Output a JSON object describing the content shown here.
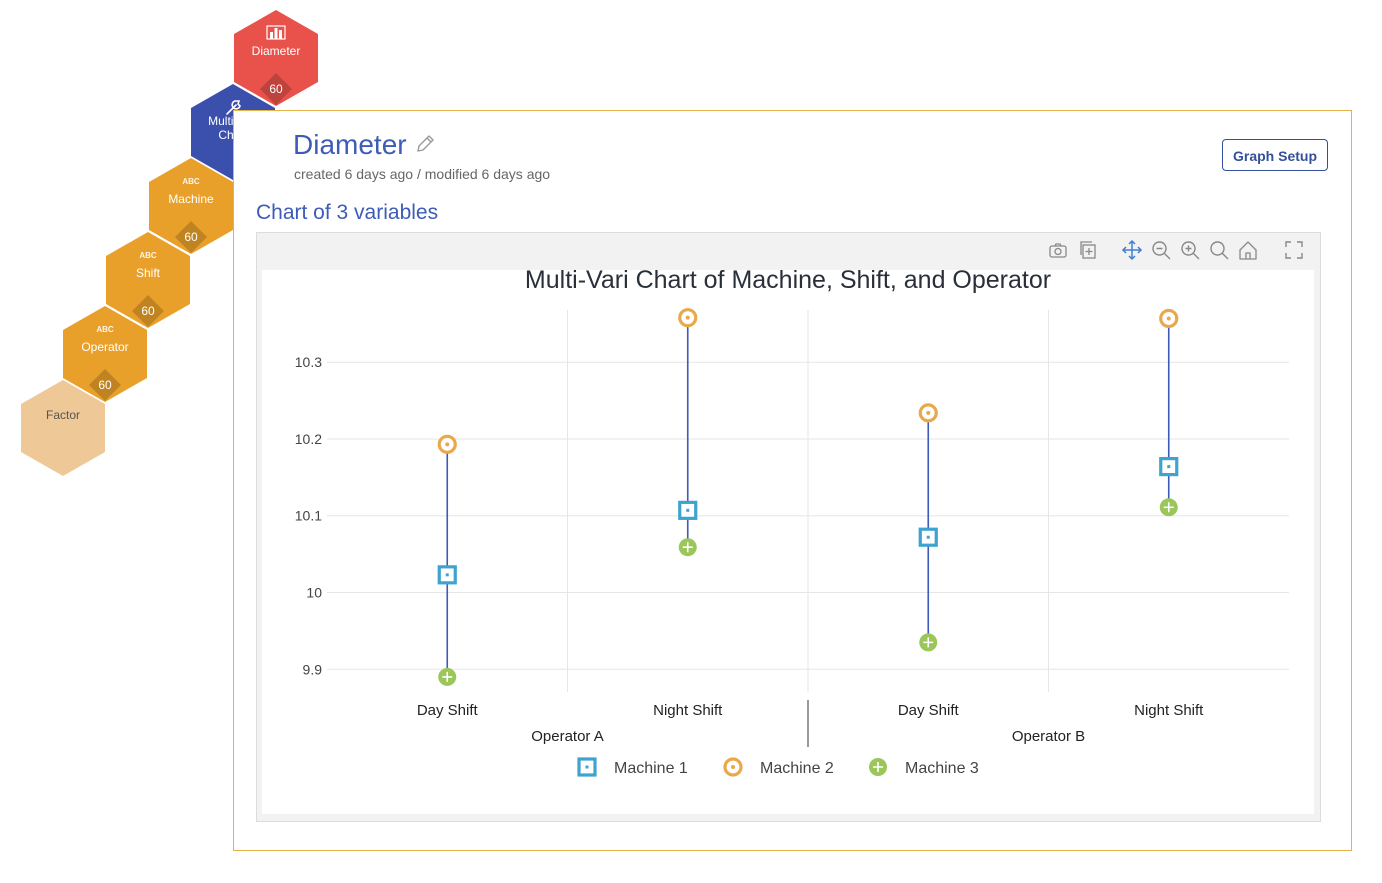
{
  "workflow": {
    "diameter": {
      "label": "Diameter",
      "count": "60"
    },
    "mvc": {
      "line1": "Multi-Vari",
      "line2": "Chart"
    },
    "machine": {
      "tag": "ABC",
      "label": "Machine",
      "count": "60"
    },
    "shift": {
      "tag": "ABC",
      "label": "Shift",
      "count": "60"
    },
    "operator": {
      "tag": "ABC",
      "label": "Operator",
      "count": "60"
    },
    "factor": {
      "label": "Factor"
    }
  },
  "panel": {
    "title": "Diameter",
    "meta": "created 6 days ago / modified 6 days ago",
    "graph_setup_label": "Graph Setup",
    "chart_heading": "Chart of 3 variables"
  },
  "colors": {
    "machine1": "#3fa3cf",
    "machine2": "#e9a84a",
    "machine3": "#9ac65a",
    "line": "#3f5ab8"
  },
  "chart_data": {
    "type": "scatter",
    "title": "Multi-Vari Chart of Machine, Shift, and Operator",
    "xlabel": "",
    "ylabel": "",
    "ylim": [
      9.886,
      10.368
    ],
    "yticks": [
      9.9,
      10,
      10.1,
      10.2,
      10.3
    ],
    "ytick_labels": [
      "9.9",
      "10",
      "10.1",
      "10.2",
      "10.3"
    ],
    "groups": [
      "Operator A",
      "Operator B"
    ],
    "categories": [
      "Day Shift",
      "Night Shift",
      "Day Shift",
      "Night Shift"
    ],
    "series": [
      {
        "name": "Machine 1",
        "values": [
          10.023,
          10.107,
          10.072,
          10.164
        ]
      },
      {
        "name": "Machine 2",
        "values": [
          10.193,
          10.358,
          10.234,
          10.357
        ]
      },
      {
        "name": "Machine 3",
        "values": [
          9.89,
          10.059,
          9.935,
          10.111
        ]
      }
    ],
    "legend_position": "bottom"
  }
}
